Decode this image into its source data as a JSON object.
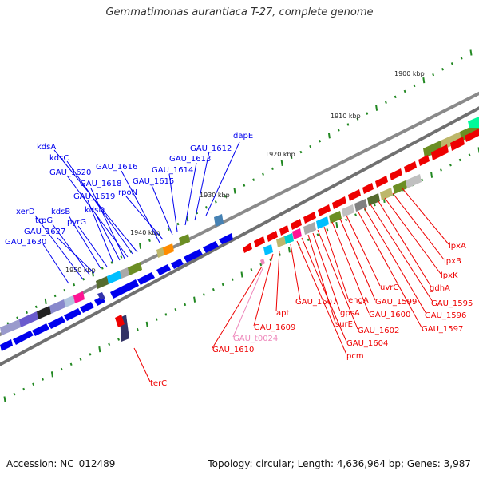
{
  "title": "Gemmatimonas aurantiaca T-27, complete genome",
  "footer": {
    "accession": "Accession: NC_012489",
    "summary": "Topology: circular; Length: 4,636,964 bp; Genes: 3,987"
  },
  "colors": {
    "forward_strand": "#0000ee",
    "reverse_strand": "#ee0000",
    "rna_gene": "#ee88bb",
    "backbone": "#888888",
    "tick": "#228822"
  },
  "scale_labels": [
    "1900 kbp",
    "1910 kbp",
    "1920 kbp",
    "1930 kbp",
    "1940 kbp",
    "1950 kbp"
  ],
  "forward_genes": [
    "GAU_1630",
    "xerD",
    "GAU_1627",
    "trpG",
    "kdsB",
    "pyrG",
    "GAU_1619",
    "kdsD",
    "GAU_1618",
    "GAU_1620",
    "kdsC",
    "kdsA",
    "GAU_1616",
    "rpoN",
    "GAU_1615",
    "GAU_1614",
    "GAU_1613",
    "GAU_1612",
    "dapE"
  ],
  "reverse_genes": [
    "lpxA",
    "lpxB",
    "lpxK",
    "gdhA",
    "GAU_1595",
    "GAU_1596",
    "GAU_1597",
    "uvrC",
    "GAU_1599",
    "GAU_1600",
    "engA",
    "GAU_1602",
    "gpsA",
    "surE",
    "GAU_1604",
    "pcm",
    "GAU_1607",
    "apt",
    "GAU_1609",
    "GAU_t0024",
    "GAU_1610",
    "terC"
  ]
}
